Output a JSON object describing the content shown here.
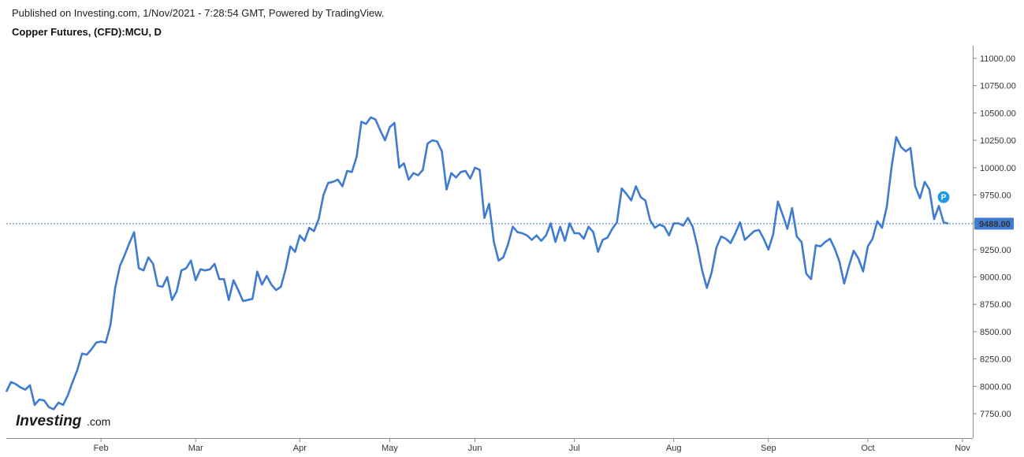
{
  "header": {
    "published": "Published on Investing.com, 1/Nov/2021 - 7:28:54 GMT, Powered by TradingView.",
    "title": "Copper Futures, (CFD):MCU, D"
  },
  "logo": {
    "brand": "Investing",
    "suffix": ".com"
  },
  "badge": {
    "label": "P"
  },
  "colors": {
    "line": "#3e7bd1",
    "last_price_bg": "#3e7bd1",
    "last_price_text": "#ffffff",
    "axis": "#888888",
    "badge": "#1e9be2"
  },
  "chart_data": {
    "type": "line",
    "title": "Copper Futures, (CFD):MCU, D",
    "xlabel": "",
    "ylabel": "",
    "ylim": [
      7600,
      11070
    ],
    "y_ticks": [
      "11000.00",
      "10750.00",
      "10500.00",
      "10250.00",
      "10000.00",
      "9750.00",
      "9500.00",
      "9250.00",
      "9000.00",
      "8750.00",
      "8500.00",
      "8250.00",
      "8000.00",
      "7750.00"
    ],
    "y_tick_values": [
      11000,
      10750,
      10500,
      10250,
      10000,
      9750,
      9500,
      9250,
      9000,
      8750,
      8500,
      8250,
      8000,
      7750
    ],
    "x_ticks": [
      "Feb",
      "Mar",
      "Apr",
      "May",
      "Jun",
      "Jul",
      "Aug",
      "Sep",
      "Oct",
      "Nov"
    ],
    "x_tick_index": [
      20,
      40,
      62,
      81,
      99,
      120,
      141,
      161,
      182,
      202
    ],
    "last_price": 9488.0,
    "last_price_label": "9488.00",
    "series": [
      {
        "values": [
          7950,
          8040,
          8020,
          7990,
          7970,
          8010,
          7830,
          7880,
          7870,
          7810,
          7790,
          7850,
          7830,
          7920,
          8040,
          8150,
          8300,
          8290,
          8340,
          8400,
          8410,
          8400,
          8560,
          8900,
          9100,
          9200,
          9310,
          9410,
          9080,
          9060,
          9180,
          9120,
          8920,
          8910,
          9000,
          8790,
          8870,
          9060,
          9080,
          9150,
          8970,
          9070,
          9060,
          9070,
          9120,
          8980,
          8980,
          8790,
          8970,
          8880,
          8780,
          8790,
          8800,
          9050,
          8930,
          9010,
          8930,
          8880,
          8910,
          9070,
          9280,
          9230,
          9380,
          9330,
          9450,
          9420,
          9530,
          9750,
          9860,
          9870,
          9890,
          9830,
          9970,
          9960,
          10100,
          10420,
          10400,
          10460,
          10440,
          10340,
          10250,
          10370,
          10410,
          10000,
          10040,
          9890,
          9950,
          9930,
          9980,
          10220,
          10250,
          10240,
          10150,
          9800,
          9950,
          9910,
          9960,
          9970,
          9900,
          10000,
          9980,
          9540,
          9670,
          9320,
          9150,
          9180,
          9300,
          9460,
          9410,
          9400,
          9380,
          9340,
          9380,
          9330,
          9380,
          9490,
          9320,
          9460,
          9330,
          9490,
          9400,
          9400,
          9350,
          9460,
          9410,
          9230,
          9340,
          9360,
          9440,
          9500,
          9810,
          9760,
          9700,
          9830,
          9730,
          9700,
          9520,
          9450,
          9480,
          9460,
          9380,
          9490,
          9490,
          9470,
          9540,
          9460,
          9280,
          9060,
          8900,
          9040,
          9270,
          9370,
          9350,
          9310,
          9400,
          9500,
          9340,
          9380,
          9420,
          9430,
          9350,
          9250,
          9390,
          9690,
          9570,
          9440,
          9630,
          9370,
          9320,
          9030,
          8980,
          9290,
          9280,
          9320,
          9350,
          9260,
          9140,
          8940,
          9100,
          9240,
          9170,
          9050,
          9280,
          9350,
          9510,
          9450,
          9640,
          10000,
          10280,
          10190,
          10150,
          10180,
          9830,
          9720,
          9870,
          9800,
          9530,
          9650,
          9500,
          9488
        ]
      }
    ]
  }
}
